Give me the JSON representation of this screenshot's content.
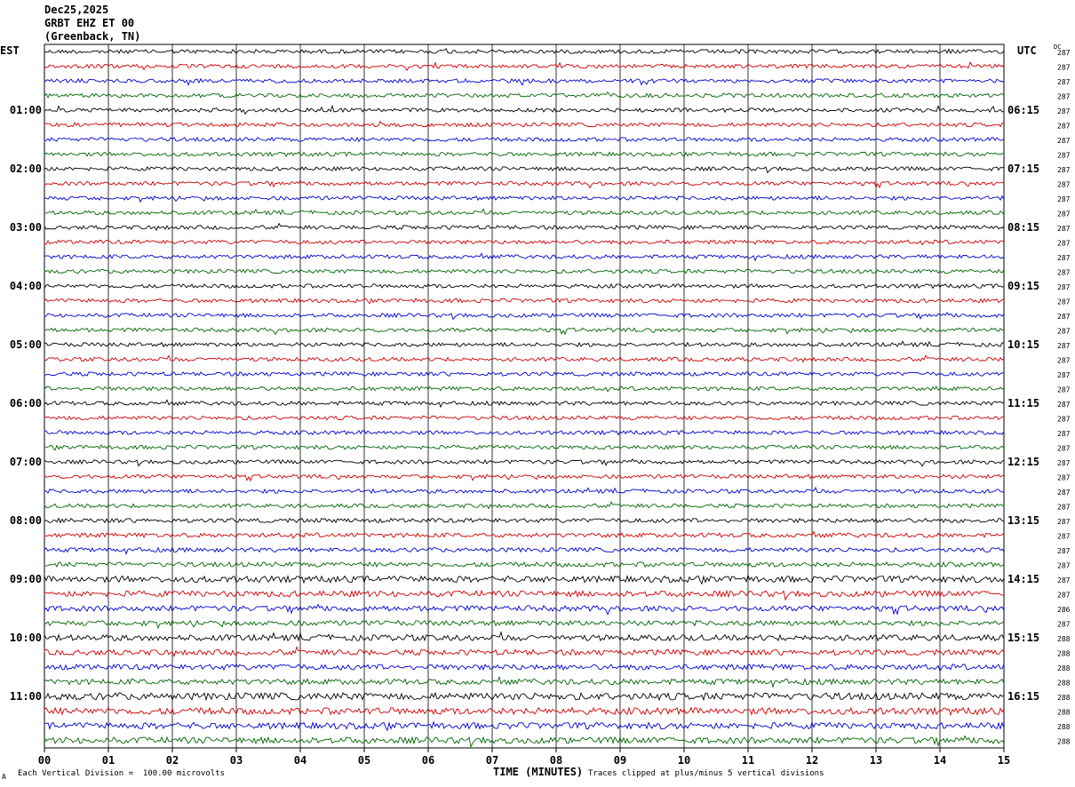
{
  "header": {
    "date": "Dec25,2025",
    "station": "GRBT EHZ ET 00",
    "location": "(Greenback, TN)"
  },
  "left_tz_label": "EST",
  "right_tz_label": "UTC",
  "dc_label": "DC",
  "footer": {
    "vertical_division": "Each Vertical Division =  100.00 microvolts",
    "xlabel": "TIME (MINUTES)",
    "clip_note": "Traces clipped at plus/minus 5 vertical divisions",
    "corner": "A"
  },
  "colors": {
    "trace_cycle": [
      "#000000",
      "#cc0000",
      "#0000cc",
      "#006600"
    ],
    "grid": "#000000"
  },
  "chart_data": {
    "type": "line",
    "title": "GRBT EHZ ET 00 (Greenback, TN)",
    "xlabel": "TIME (MINUTES)",
    "xlim": [
      0,
      15
    ],
    "x_ticks": [
      "00",
      "01",
      "02",
      "03",
      "04",
      "05",
      "06",
      "07",
      "08",
      "09",
      "10",
      "11",
      "12",
      "13",
      "14",
      "15"
    ],
    "left_hour_labels": [
      "01:00",
      "02:00",
      "03:00",
      "04:00",
      "05:00",
      "06:00",
      "07:00",
      "08:00",
      "09:00",
      "10:00",
      "11:00"
    ],
    "right_hour_labels": [
      "06:15",
      "07:15",
      "08:15",
      "09:15",
      "10:15",
      "11:15",
      "12:15",
      "13:15",
      "14:15",
      "15:15",
      "16:15"
    ],
    "trace_count": 48,
    "dc_values": [
      287,
      287,
      287,
      287,
      287,
      287,
      287,
      287,
      287,
      287,
      287,
      287,
      287,
      287,
      287,
      287,
      287,
      287,
      287,
      287,
      287,
      287,
      287,
      287,
      287,
      287,
      287,
      287,
      287,
      287,
      287,
      287,
      287,
      287,
      287,
      287,
      287,
      287,
      286,
      287,
      288,
      288,
      288,
      288,
      288,
      288,
      288,
      288
    ],
    "trace_amplitude": [
      1,
      1,
      1,
      1,
      1,
      1,
      1,
      1,
      1,
      1,
      1,
      1,
      1,
      1,
      1,
      1,
      1,
      1,
      1,
      1,
      1,
      1,
      1,
      1,
      1,
      1,
      1,
      1,
      1,
      1,
      1,
      1,
      1.1,
      1.1,
      1.1,
      1.2,
      1.6,
      1.5,
      1.4,
      1.3,
      1.5,
      1.4,
      1.4,
      1.4,
      1.8,
      1.7,
      1.6,
      1.6
    ]
  }
}
